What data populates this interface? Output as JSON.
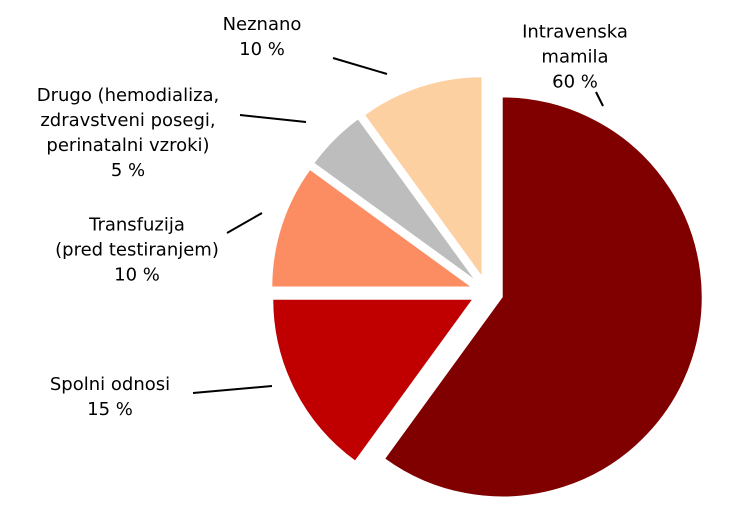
{
  "chart_data": {
    "type": "pie",
    "categories": [
      "Intravenska mamila",
      "Spolni odnosi",
      "Transfuzija\n(pred testiranjem)",
      "Drugo (hemodializa,\nzdravstveni posegi,\nperinatalni vzroki)",
      "Neznano"
    ],
    "values": [
      60,
      15,
      10,
      5,
      10
    ],
    "value_labels": [
      "60 %",
      "15 %",
      "10 %",
      "5 %",
      "10 %"
    ],
    "colors": [
      "#800000",
      "#c00000",
      "#fc8d62",
      "#bdbdbd",
      "#fdd0a2"
    ]
  }
}
